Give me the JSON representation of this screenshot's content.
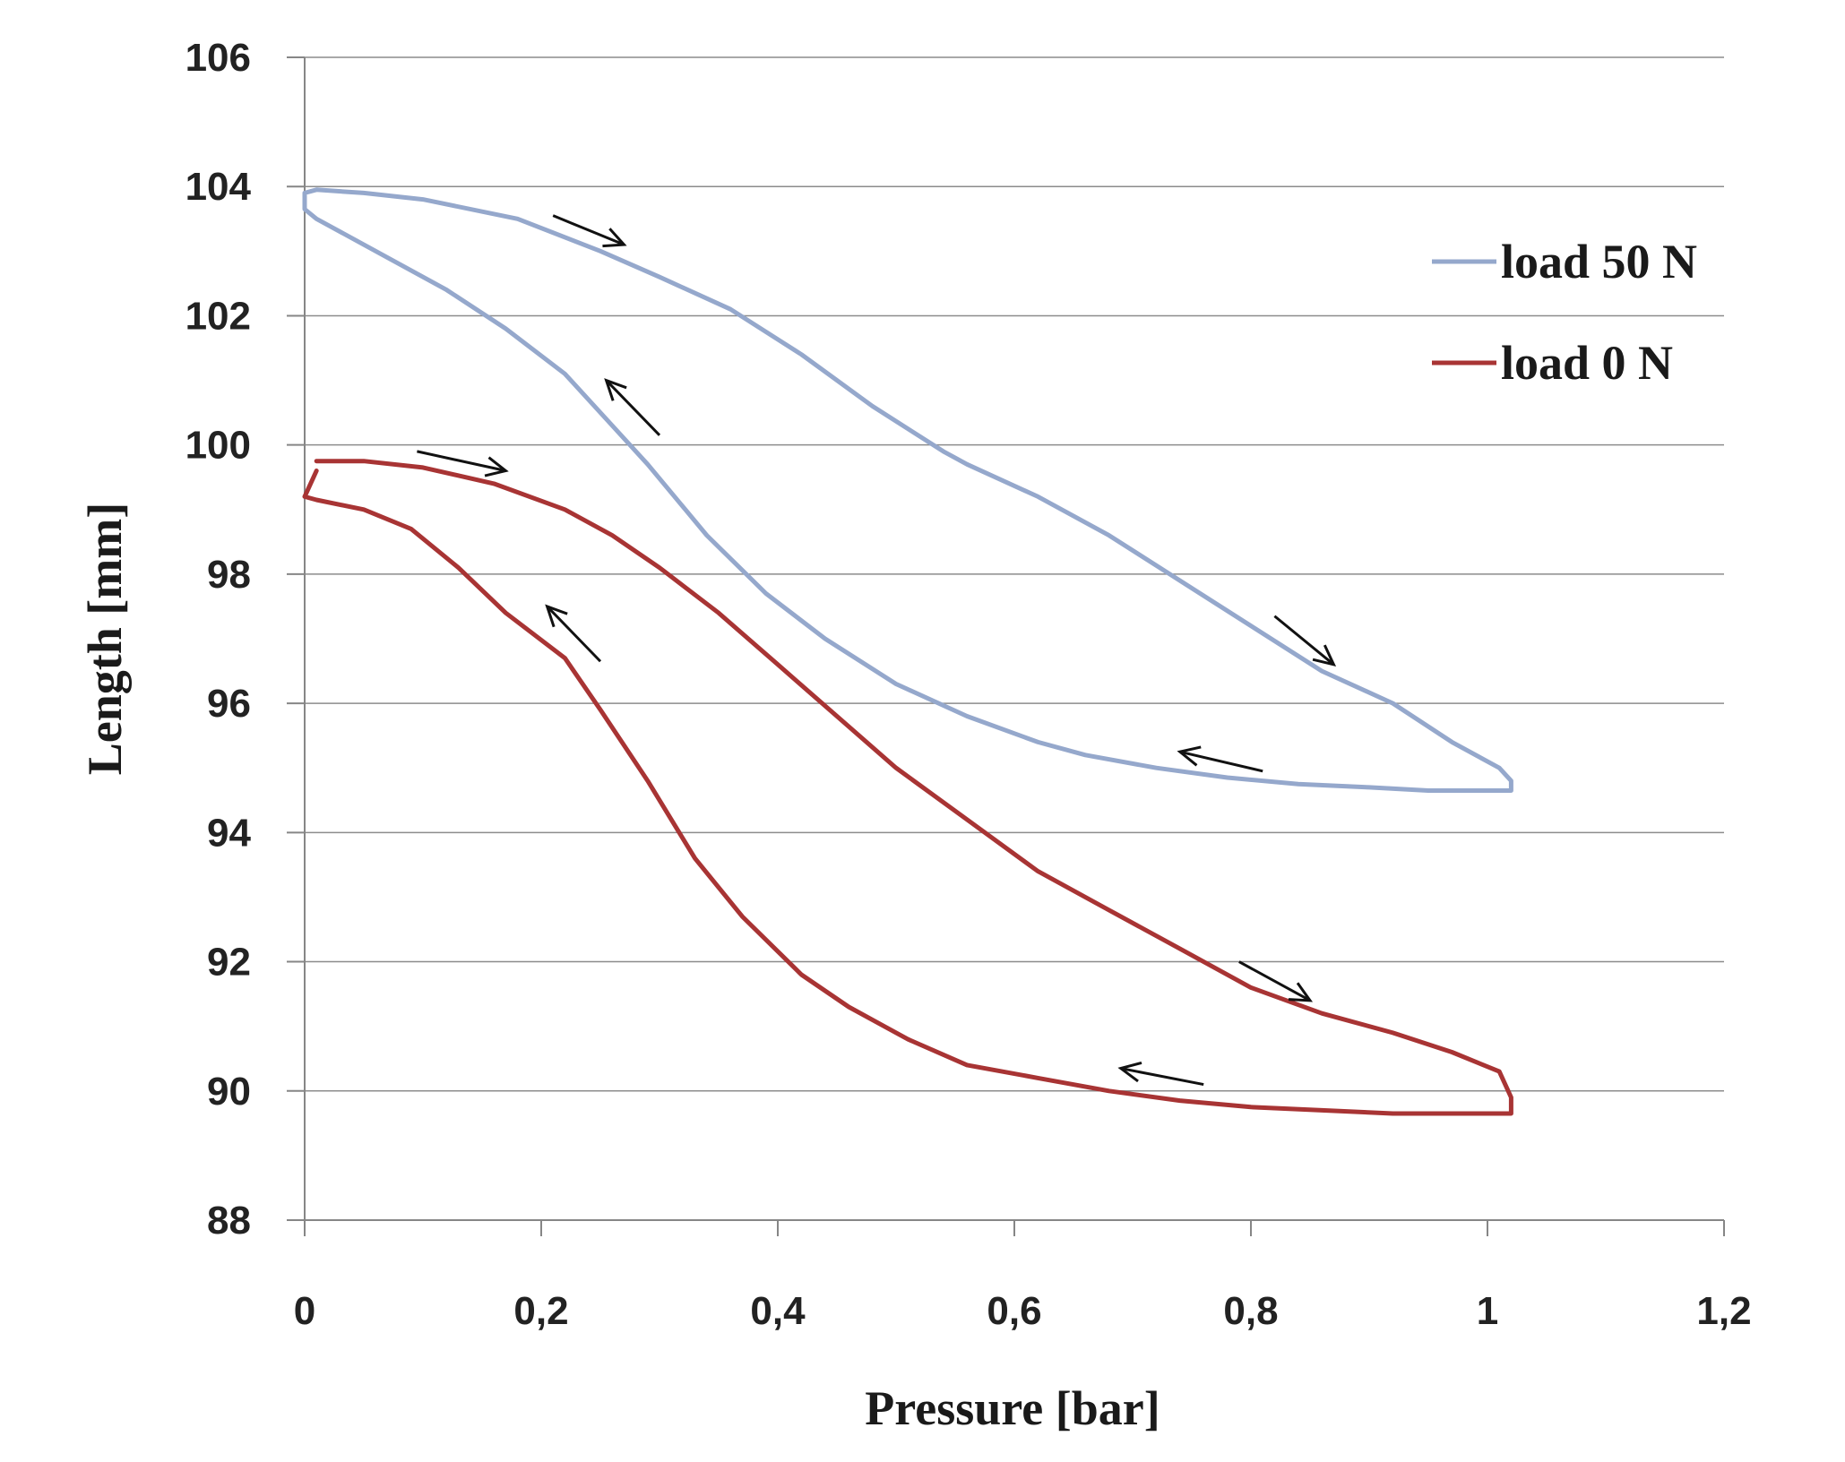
{
  "chart_data": {
    "type": "line",
    "title": "",
    "xlabel": "Pressure [bar]",
    "ylabel": "Length [mm]",
    "xlim": [
      0,
      1.2
    ],
    "ylim": [
      88,
      106
    ],
    "x_ticks": [
      0,
      0.2,
      0.4,
      0.6,
      0.8,
      1,
      1.2
    ],
    "x_tick_labels": [
      "0",
      "0,2",
      "0,4",
      "0,6",
      "0,8",
      "1",
      "1,2"
    ],
    "y_ticks": [
      88,
      90,
      92,
      94,
      96,
      98,
      100,
      102,
      104,
      106
    ],
    "y_tick_labels": [
      "88",
      "90",
      "92",
      "94",
      "96",
      "98",
      "100",
      "102",
      "104",
      "106"
    ],
    "grid": "horizontal",
    "legend_position": "top-right",
    "series": [
      {
        "name": "load 50 N",
        "color": "#95a8cc",
        "x": [
          0.0,
          0.01,
          0.05,
          0.1,
          0.18,
          0.25,
          0.3,
          0.36,
          0.42,
          0.48,
          0.54,
          0.56,
          0.62,
          0.68,
          0.74,
          0.8,
          0.86,
          0.92,
          0.97,
          1.01,
          1.02,
          1.02,
          1.0,
          0.95,
          0.9,
          0.84,
          0.78,
          0.72,
          0.66,
          0.62,
          0.56,
          0.5,
          0.44,
          0.39,
          0.34,
          0.29,
          0.26,
          0.22,
          0.17,
          0.12,
          0.06,
          0.01,
          0.0,
          0.0
        ],
        "y": [
          103.9,
          103.95,
          103.9,
          103.8,
          103.5,
          103.0,
          102.6,
          102.1,
          101.4,
          100.6,
          99.9,
          99.7,
          99.2,
          98.6,
          97.9,
          97.2,
          96.5,
          96.0,
          95.4,
          95.0,
          94.8,
          94.65,
          94.65,
          94.65,
          94.7,
          94.75,
          94.85,
          95.0,
          95.2,
          95.4,
          95.8,
          96.3,
          97.0,
          97.7,
          98.6,
          99.7,
          100.3,
          101.1,
          101.8,
          102.4,
          103.0,
          103.5,
          103.65,
          103.9
        ]
      },
      {
        "name": "load 0 N",
        "color": "#a83434",
        "x": [
          0.01,
          0.05,
          0.1,
          0.16,
          0.22,
          0.26,
          0.3,
          0.35,
          0.4,
          0.45,
          0.5,
          0.56,
          0.62,
          0.68,
          0.74,
          0.8,
          0.86,
          0.92,
          0.97,
          1.01,
          1.02,
          1.02,
          1.0,
          0.96,
          0.92,
          0.86,
          0.8,
          0.74,
          0.68,
          0.62,
          0.56,
          0.51,
          0.46,
          0.42,
          0.37,
          0.33,
          0.29,
          0.25,
          0.22,
          0.17,
          0.13,
          0.09,
          0.05,
          0.01,
          0.0,
          0.01
        ],
        "y": [
          99.75,
          99.75,
          99.65,
          99.4,
          99.0,
          98.6,
          98.1,
          97.4,
          96.6,
          95.8,
          95.0,
          94.2,
          93.4,
          92.8,
          92.2,
          91.6,
          91.2,
          90.9,
          90.6,
          90.3,
          89.9,
          89.65,
          89.65,
          89.65,
          89.65,
          89.7,
          89.75,
          89.85,
          90.0,
          90.2,
          90.4,
          90.8,
          91.3,
          91.8,
          92.7,
          93.6,
          94.8,
          95.9,
          96.7,
          97.4,
          98.1,
          98.7,
          99.0,
          99.15,
          99.2,
          99.6
        ]
      }
    ],
    "annotations": [
      {
        "type": "arrow",
        "series": "load 50 N",
        "from": [
          0.21,
          103.55
        ],
        "to": [
          0.27,
          103.1
        ]
      },
      {
        "type": "arrow",
        "series": "load 50 N",
        "from": [
          0.3,
          100.15
        ],
        "to": [
          0.255,
          101.0
        ]
      },
      {
        "type": "arrow",
        "series": "load 50 N",
        "from": [
          0.82,
          97.35
        ],
        "to": [
          0.87,
          96.6
        ]
      },
      {
        "type": "arrow",
        "series": "load 50 N",
        "from": [
          0.81,
          94.95
        ],
        "to": [
          0.74,
          95.25
        ]
      },
      {
        "type": "arrow",
        "series": "load 0 N",
        "from": [
          0.095,
          99.9
        ],
        "to": [
          0.17,
          99.6
        ]
      },
      {
        "type": "arrow",
        "series": "load 0 N",
        "from": [
          0.25,
          96.65
        ],
        "to": [
          0.205,
          97.5
        ]
      },
      {
        "type": "arrow",
        "series": "load 0 N",
        "from": [
          0.79,
          92.0
        ],
        "to": [
          0.85,
          91.4
        ]
      },
      {
        "type": "arrow",
        "series": "load 0 N",
        "from": [
          0.76,
          90.1
        ],
        "to": [
          0.69,
          90.35
        ]
      }
    ]
  }
}
